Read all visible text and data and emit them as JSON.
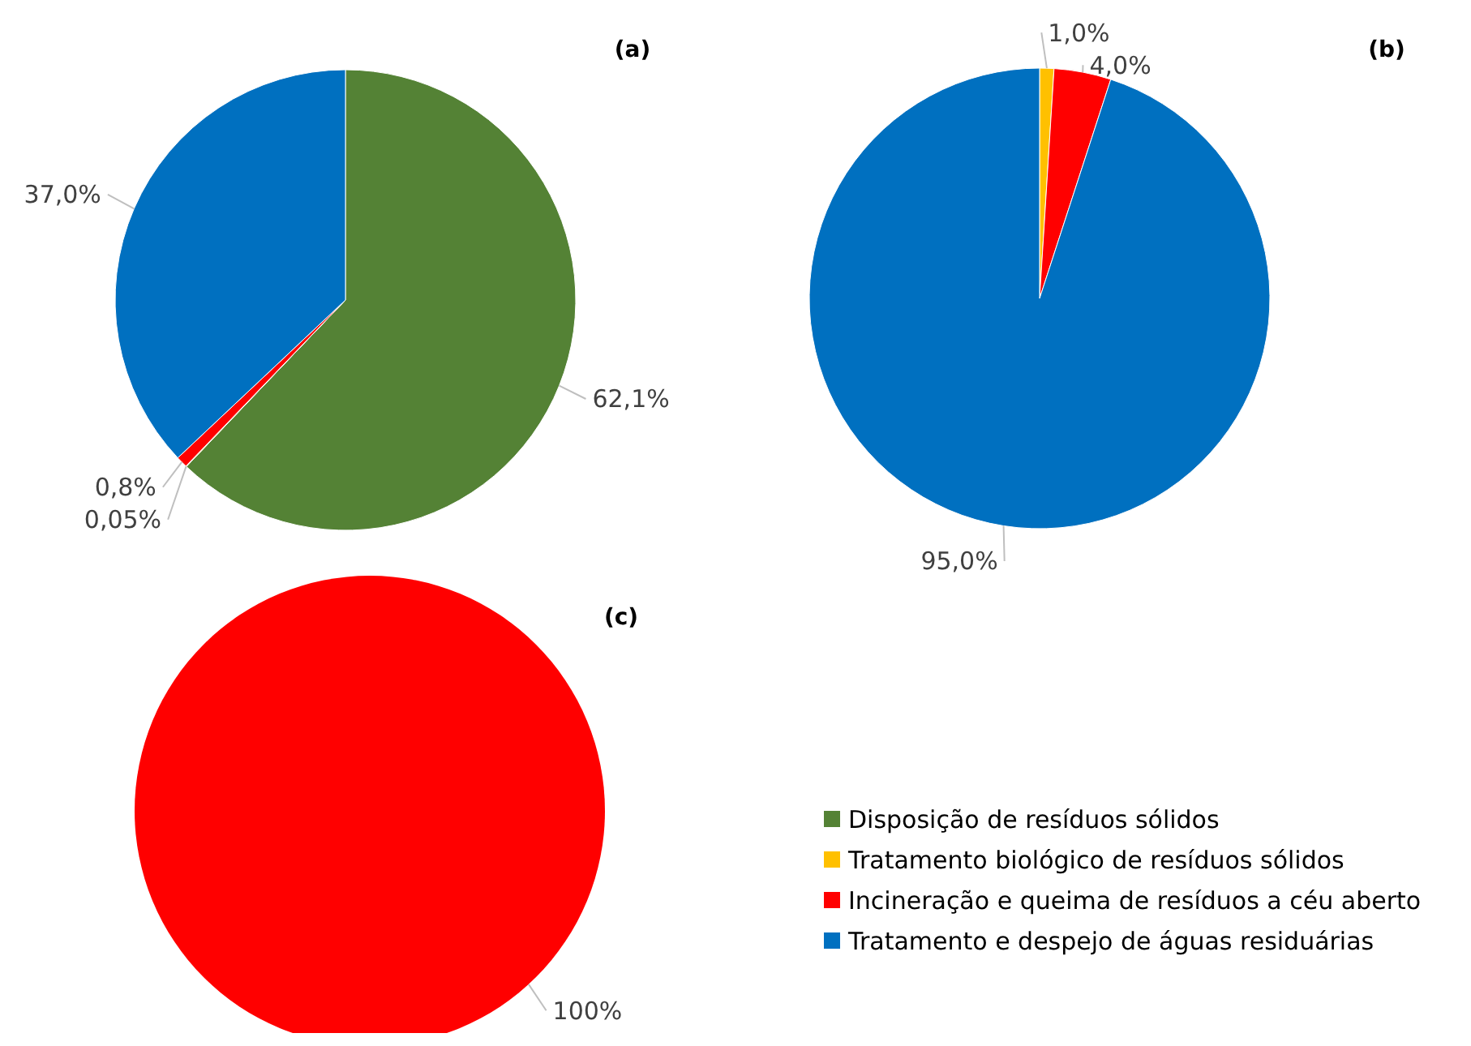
{
  "chart_data": [
    {
      "type": "pie",
      "title": "(a)",
      "categories": [
        null,
        null,
        null,
        null
      ],
      "values": [
        62.1,
        0.05,
        0.8,
        37.0
      ],
      "colors": [
        "#548235",
        "#ffc000",
        "#ff0000",
        "#0070c0"
      ],
      "value_labels": [
        "62,1%",
        "0,05%",
        "0,8%",
        "37,0%"
      ],
      "legend": false
    },
    {
      "type": "pie",
      "title": "(b)",
      "categories": [
        null,
        null,
        null,
        null
      ],
      "values": [
        0,
        1.0,
        4.0,
        95.0
      ],
      "colors": [
        "#548235",
        "#ffc000",
        "#ff0000",
        "#0070c0"
      ],
      "value_labels": [
        null,
        "1,0%",
        "4,0%",
        "95,0%"
      ],
      "legend": false
    },
    {
      "type": "pie",
      "title": "(c)",
      "categories": [
        "Disposição de resíduos sólidos",
        "Tratamento biológico de resíduos sólidos",
        "Incineração e queima de resíduos a céu aberto",
        "Tratamento e despejo de águas residuárias"
      ],
      "values": [
        0,
        0,
        100,
        0
      ],
      "colors": [
        "#548235",
        "#ffc000",
        "#ff0000",
        "#0070c0"
      ],
      "value_labels": [
        null,
        null,
        "100%",
        null
      ],
      "legend": "right"
    }
  ]
}
